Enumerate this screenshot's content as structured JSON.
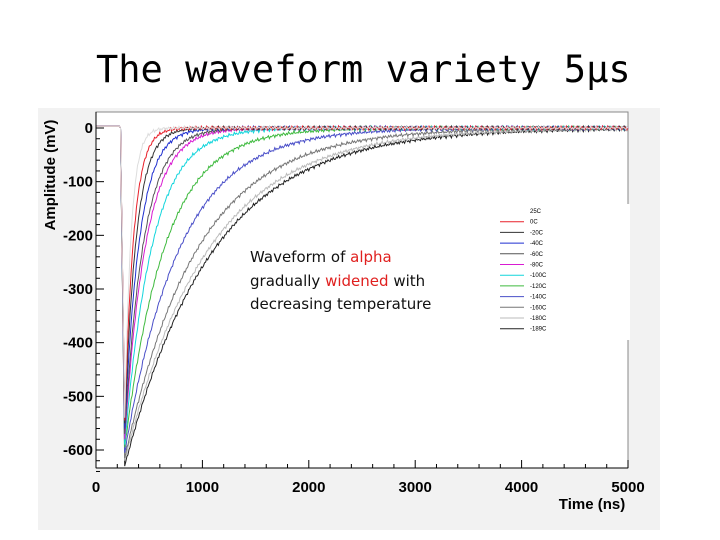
{
  "slide": {
    "title": "The waveform variety 5μs"
  },
  "chart_data": {
    "type": "line",
    "xlabel": "Time (ns)",
    "ylabel": "Amplitude (mV)",
    "xlim": [
      0,
      5000
    ],
    "ylim": [
      -650,
      25
    ],
    "xticks": [
      0,
      1000,
      2000,
      3000,
      4000,
      5000
    ],
    "yticks": [
      0,
      -100,
      -200,
      -300,
      -400,
      -500,
      -600
    ],
    "pulse_start_ns": 230,
    "peak_time_ns": 270,
    "annotation": {
      "line1_pre": "Waveform of ",
      "line1_hl": "alpha",
      "line2_pre": "gradually  ",
      "line2_hl": "widened",
      "line2_post": " with",
      "line3": "decreasing temperature"
    },
    "series": [
      {
        "name": "25C",
        "color": "#ffffff",
        "peak_mV": -540,
        "decay_ns": 60
      },
      {
        "name": "0C",
        "color": "#e8202a",
        "peak_mV": -545,
        "decay_ns": 85
      },
      {
        "name": "-20C",
        "color": "#333333",
        "peak_mV": -550,
        "decay_ns": 110
      },
      {
        "name": "-40C",
        "color": "#1f2fd0",
        "peak_mV": -560,
        "decay_ns": 140
      },
      {
        "name": "-60C",
        "color": "#555555",
        "peak_mV": -570,
        "decay_ns": 180
      },
      {
        "name": "-80C",
        "color": "#d81bd2",
        "peak_mV": -580,
        "decay_ns": 200
      },
      {
        "name": "-100C",
        "color": "#12d5dc",
        "peak_mV": -590,
        "decay_ns": 260
      },
      {
        "name": "-120C",
        "color": "#3fba3f",
        "peak_mV": -595,
        "decay_ns": 380
      },
      {
        "name": "-140C",
        "color": "#4a4fc8",
        "peak_mV": -605,
        "decay_ns": 520
      },
      {
        "name": "-160C",
        "color": "#777777",
        "peak_mV": -615,
        "decay_ns": 680
      },
      {
        "name": "-180C",
        "color": "#bbbbbb",
        "peak_mV": -620,
        "decay_ns": 780
      },
      {
        "name": "-189C",
        "color": "#222222",
        "peak_mV": -630,
        "decay_ns": 820
      }
    ]
  }
}
